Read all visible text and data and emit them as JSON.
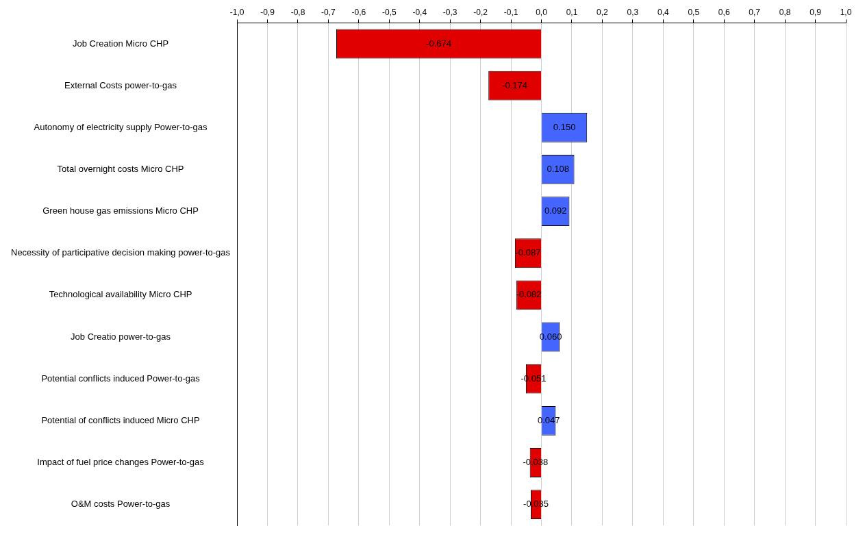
{
  "chart_data": {
    "type": "bar",
    "orientation": "horizontal",
    "categories": [
      "Job Creation Micro CHP",
      "External Costs power-to-gas",
      "Autonomy of electricity supply Power-to-gas",
      "Total overnight costs Micro CHP",
      "Green house gas emissions Micro CHP",
      "Necessity of participative decision making power-to-gas",
      "Technological availability Micro CHP",
      "Job Creatio power-to-gas",
      "Potential conflicts induced Power-to-gas",
      "Potential of conflicts induced Micro CHP",
      "Impact of fuel price changes Power-to-gas",
      "O&M costs Power-to-gas"
    ],
    "values": [
      -0.674,
      -0.174,
      0.15,
      0.108,
      0.092,
      -0.087,
      -0.082,
      0.06,
      -0.051,
      0.047,
      -0.038,
      -0.035
    ],
    "value_labels": [
      "-0.674",
      "-0.174",
      "0.150",
      "0.108",
      "0.092",
      "-0.087",
      "-0.082",
      "0.060",
      "-0.051",
      "0.047",
      "-0.038",
      "-0.035"
    ],
    "colors": [
      "#e00000",
      "#e00000",
      "#4466ff",
      "#4466ff",
      "#4466ff",
      "#e00000",
      "#e00000",
      "#4466ff",
      "#e00000",
      "#4466ff",
      "#e00000",
      "#e00000"
    ],
    "xlim": [
      -1,
      1
    ],
    "xticks": [
      {
        "value": -1,
        "label": "-1,0"
      },
      {
        "value": -0.9,
        "label": "-0,9"
      },
      {
        "value": -0.8,
        "label": "-0,8"
      },
      {
        "value": -0.7,
        "label": "-0,7"
      },
      {
        "value": -0.6,
        "label": "-0,6"
      },
      {
        "value": -0.5,
        "label": "-0,5"
      },
      {
        "value": -0.4,
        "label": "-0,4"
      },
      {
        "value": -0.3,
        "label": "-0,3"
      },
      {
        "value": -0.2,
        "label": "-0,2"
      },
      {
        "value": -0.1,
        "label": "-0,1"
      },
      {
        "value": 0,
        "label": "0,0"
      },
      {
        "value": 0.1,
        "label": "0,1"
      },
      {
        "value": 0.2,
        "label": "0,2"
      },
      {
        "value": 0.3,
        "label": "0,3"
      },
      {
        "value": 0.4,
        "label": "0,4"
      },
      {
        "value": 0.5,
        "label": "0,5"
      },
      {
        "value": 0.6,
        "label": "0,6"
      },
      {
        "value": 0.7,
        "label": "0,7"
      },
      {
        "value": 0.8,
        "label": "0,8"
      },
      {
        "value": 0.9,
        "label": "0,9"
      },
      {
        "value": 1,
        "label": "1,0"
      }
    ],
    "grid": "x",
    "legend": false
  }
}
